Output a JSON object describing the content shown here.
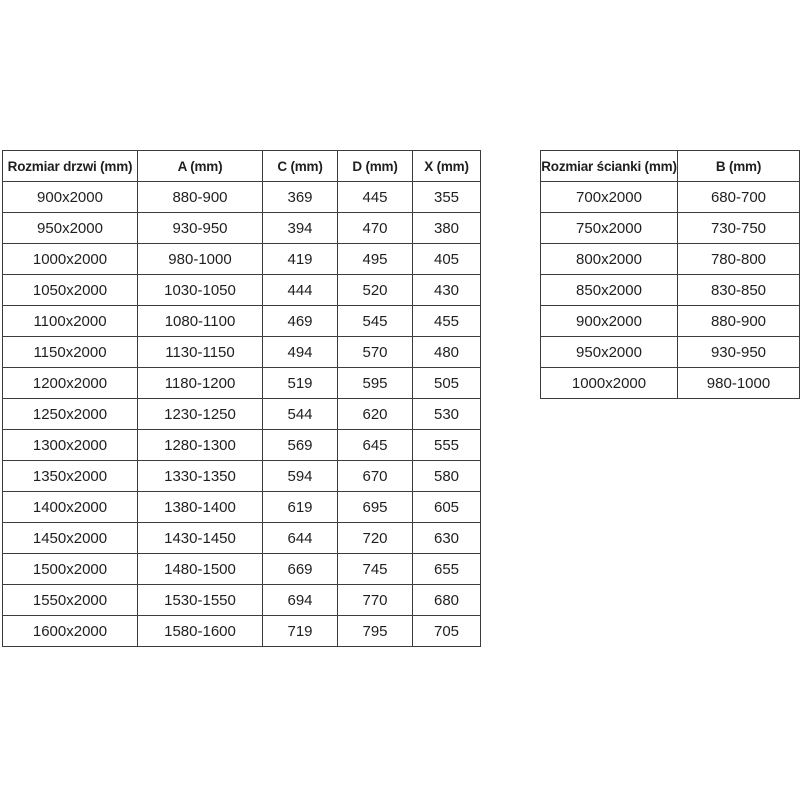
{
  "page": {
    "background_color": "#ffffff",
    "border_color": "#3c3c3c",
    "text_color": "#1f1f1f"
  },
  "tables": [
    {
      "name": "door-sizes",
      "headers": [
        "Rozmiar drzwi (mm)",
        "A (mm)",
        "C (mm)",
        "D (mm)",
        "X (mm)"
      ],
      "rows": [
        [
          "900x2000",
          "880-900",
          "369",
          "445",
          "355"
        ],
        [
          "950x2000",
          "930-950",
          "394",
          "470",
          "380"
        ],
        [
          "1000x2000",
          "980-1000",
          "419",
          "495",
          "405"
        ],
        [
          "1050x2000",
          "1030-1050",
          "444",
          "520",
          "430"
        ],
        [
          "1100x2000",
          "1080-1100",
          "469",
          "545",
          "455"
        ],
        [
          "1150x2000",
          "1130-1150",
          "494",
          "570",
          "480"
        ],
        [
          "1200x2000",
          "1180-1200",
          "519",
          "595",
          "505"
        ],
        [
          "1250x2000",
          "1230-1250",
          "544",
          "620",
          "530"
        ],
        [
          "1300x2000",
          "1280-1300",
          "569",
          "645",
          "555"
        ],
        [
          "1350x2000",
          "1330-1350",
          "594",
          "670",
          "580"
        ],
        [
          "1400x2000",
          "1380-1400",
          "619",
          "695",
          "605"
        ],
        [
          "1450x2000",
          "1430-1450",
          "644",
          "720",
          "630"
        ],
        [
          "1500x2000",
          "1480-1500",
          "669",
          "745",
          "655"
        ],
        [
          "1550x2000",
          "1530-1550",
          "694",
          "770",
          "680"
        ],
        [
          "1600x2000",
          "1580-1600",
          "719",
          "795",
          "705"
        ]
      ]
    },
    {
      "name": "wall-sizes",
      "headers": [
        "Rozmiar ścianki (mm)",
        "B (mm)"
      ],
      "rows": [
        [
          "700x2000",
          "680-700"
        ],
        [
          "750x2000",
          "730-750"
        ],
        [
          "800x2000",
          "780-800"
        ],
        [
          "850x2000",
          "830-850"
        ],
        [
          "900x2000",
          "880-900"
        ],
        [
          "950x2000",
          "930-950"
        ],
        [
          "1000x2000",
          "980-1000"
        ]
      ]
    }
  ]
}
